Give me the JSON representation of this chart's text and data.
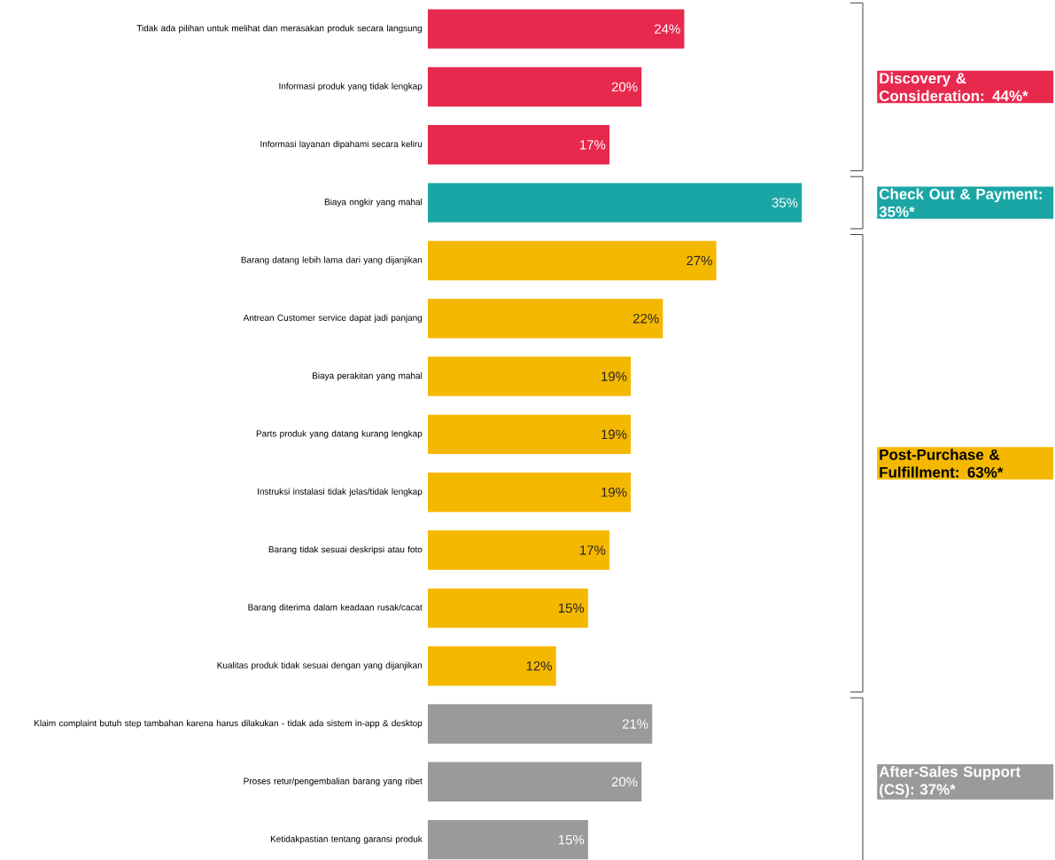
{
  "chart_data": {
    "type": "bar",
    "orientation": "horizontal",
    "categories": [
      "Tidak ada pilihan untuk melihat dan merasakan produk secara langsung",
      "Informasi produk yang tidak lengkap",
      "Informasi layanan dipahami secara keliru",
      "Biaya ongkir yang mahal",
      "Barang datang lebih lama dari yang dijanjikan",
      "Antrean Customer service dapat jadi panjang",
      "Biaya perakitan yang mahal",
      "Parts produk yang datang kurang lengkap",
      "Instruksi instalasi tidak jelas/tidak lengkap",
      "Barang tidak sesuai deskripsi atau foto",
      "Barang diterima dalam keadaan rusak/cacat",
      "Kualitas produk tidak sesuai dengan yang dijanjikan",
      "Klaim complaint butuh step tambahan karena harus dilakukan - tidak ada sistem in-app & desktop",
      "Proses retur/pengembalian barang yang ribet",
      "Ketidakpastian tentang garansi produk"
    ],
    "values": [
      24,
      20,
      17,
      35,
      27,
      22,
      19,
      19,
      19,
      17,
      15,
      12,
      21,
      20,
      15
    ],
    "value_labels": [
      "24%",
      "20%",
      "17%",
      "35%",
      "27%",
      "22%",
      "19%",
      "19%",
      "19%",
      "17%",
      "15%",
      "12%",
      "21%",
      "20%",
      "15%"
    ],
    "colors": [
      "#e8294e",
      "#e8294e",
      "#e8294e",
      "#1ba6a6",
      "#f5b800",
      "#f5b800",
      "#f5b800",
      "#f5b800",
      "#f5b800",
      "#f5b800",
      "#f5b800",
      "#f5b800",
      "#9a9a9a",
      "#9a9a9a",
      "#9a9a9a"
    ],
    "annotations": [
      "Discovery & Consideration: 44%*",
      "Check Out & Payment: 35%*",
      "Post-Purchase & Fulfillment: 63%*",
      "After-Sales Support (CS): 37%*"
    ]
  }
}
